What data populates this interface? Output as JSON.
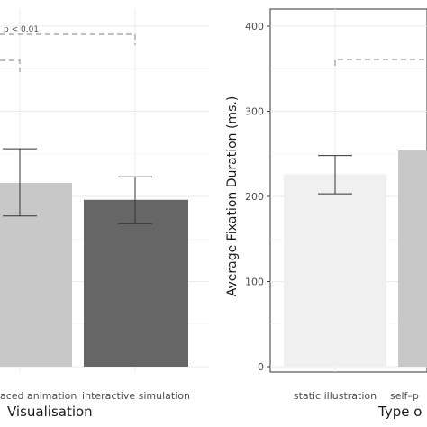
{
  "chart_data": [
    {
      "type": "bar",
      "categories": [
        "self-paced animation",
        "interactive simulation"
      ],
      "visible_category_labels": [
        "aced animation",
        "interactive simulation"
      ],
      "values": [
        216,
        196
      ],
      "error_bars": [
        {
          "low": 177,
          "high": 256
        },
        {
          "low": 168,
          "high": 223
        }
      ],
      "bar_colors": [
        "#c8c8c8",
        "#666666"
      ],
      "xlabel": "Visualisation",
      "ylabel": "",
      "ylim": [
        0,
        420
      ],
      "grid": true,
      "annotations": [
        {
          "text": "p < 0.01",
          "y": 390
        }
      ]
    },
    {
      "type": "bar",
      "categories": [
        "static illustration",
        "self-paced animation"
      ],
      "visible_category_labels": [
        "static illustration",
        "self–p"
      ],
      "values": [
        226,
        254
      ],
      "error_bars": [
        {
          "low": 203,
          "high": 248
        },
        {
          "low": null,
          "high": null
        }
      ],
      "bar_colors": [
        "#f0f0f0",
        "#c8c8c8"
      ],
      "xlabel": "Type o",
      "ylabel": "Average Fixation Duration (ms.)",
      "ylim": [
        0,
        420
      ],
      "yticks": [
        "0",
        "100",
        "200",
        "300",
        "400"
      ],
      "grid": true
    }
  ]
}
